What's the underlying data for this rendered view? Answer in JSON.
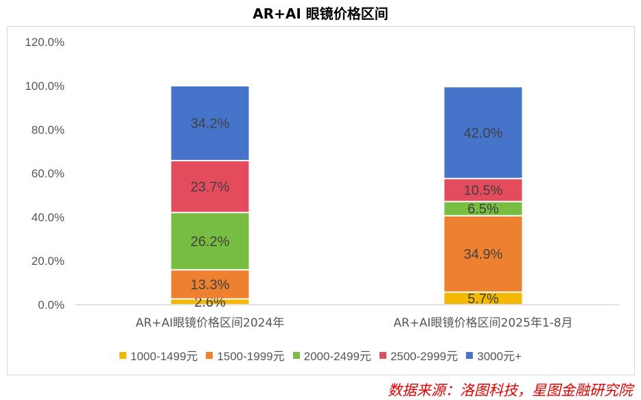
{
  "chart_data": {
    "type": "bar",
    "stacked": true,
    "title": "AR+AI 眼镜价格区间",
    "categories": [
      "AR+AI眼镜价格区间2024年",
      "AR+AI眼镜价格区间2025年1-8月"
    ],
    "series": [
      {
        "name": "1000-1499元",
        "color": "#F4B800",
        "values": [
          2.6,
          5.7
        ],
        "labels": [
          "2.6%",
          "5.7%"
        ]
      },
      {
        "name": "1500-1999元",
        "color": "#EE8130",
        "values": [
          13.3,
          34.9
        ],
        "labels": [
          "13.3%",
          "34.9%"
        ]
      },
      {
        "name": "2000-2499元",
        "color": "#76BD42",
        "values": [
          26.2,
          6.5
        ],
        "labels": [
          "26.2%",
          "6.5%"
        ]
      },
      {
        "name": "2500-2999元",
        "color": "#E44C5E",
        "values": [
          23.7,
          10.5
        ],
        "labels": [
          "23.7%",
          "10.5%"
        ]
      },
      {
        "name": "3000元+",
        "color": "#4674CB",
        "values": [
          34.2,
          42.0
        ],
        "labels": [
          "34.2%",
          "42.0%"
        ]
      }
    ],
    "yticks": [
      "0.0%",
      "20.0%",
      "40.0%",
      "60.0%",
      "80.0%",
      "100.0%",
      "120.0%"
    ],
    "ylim": [
      0,
      120
    ],
    "xlabel": "",
    "ylabel": "",
    "grid": false,
    "legend_position": "bottom"
  },
  "source": "数据来源：洛图科技，星图金融研究院"
}
